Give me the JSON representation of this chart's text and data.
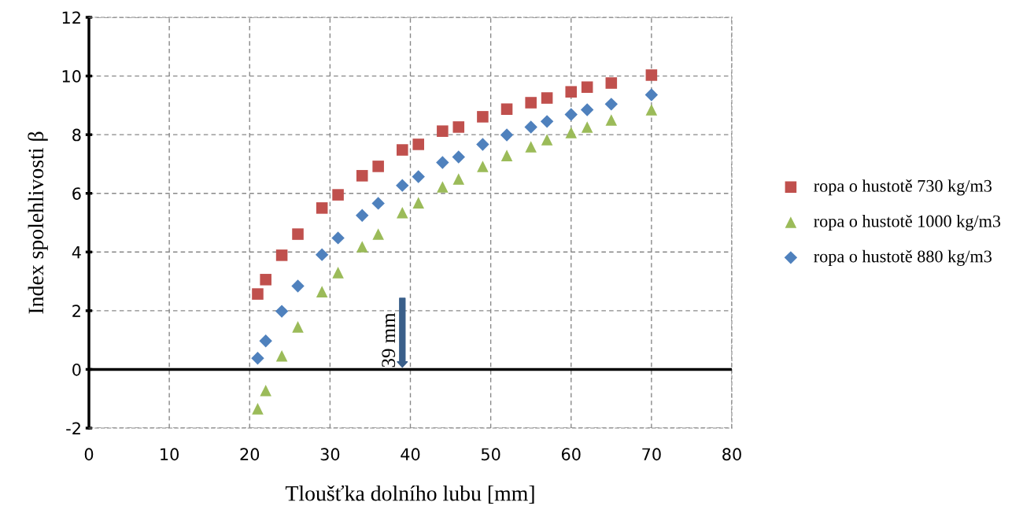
{
  "chart_data": {
    "type": "scatter",
    "xlabel": "Tloušťka dolního lubu [mm]",
    "ylabel": "Index spolehlivosti β",
    "x": [
      21,
      22,
      24,
      26,
      29,
      31,
      34,
      36,
      39,
      41,
      44,
      46,
      49,
      52,
      55,
      57,
      60,
      62,
      65,
      70
    ],
    "series": [
      {
        "name": "ropa o hustotě 730 kg/m3",
        "color": "#c0504d",
        "marker": "square",
        "values": [
          2.57,
          3.06,
          3.89,
          4.61,
          5.5,
          5.95,
          6.6,
          6.92,
          7.48,
          7.67,
          8.12,
          8.26,
          8.61,
          8.87,
          9.09,
          9.25,
          9.46,
          9.62,
          9.76,
          10.03
        ]
      },
      {
        "name": "ropa o hustotě 1000 kg/m3",
        "color": "#9bbb59",
        "marker": "triangle",
        "values": [
          -1.34,
          -0.72,
          0.46,
          1.45,
          2.65,
          3.3,
          4.18,
          4.61,
          5.34,
          5.68,
          6.22,
          6.49,
          6.92,
          7.29,
          7.59,
          7.83,
          8.07,
          8.26,
          8.5,
          8.85
        ]
      },
      {
        "name": "ropa o hustotě 880 kg/m3",
        "color": "#4f81bd",
        "marker": "diamond",
        "values": [
          0.38,
          0.97,
          1.98,
          2.84,
          3.91,
          4.48,
          5.25,
          5.66,
          6.27,
          6.57,
          7.05,
          7.24,
          7.67,
          7.99,
          8.26,
          8.45,
          8.69,
          8.85,
          9.04,
          9.36
        ]
      }
    ],
    "xlim": [
      0,
      80
    ],
    "xticks": [
      0,
      10,
      20,
      30,
      40,
      50,
      60,
      70,
      80
    ],
    "ylim": [
      -2,
      12
    ],
    "yticks": [
      -2,
      0,
      2,
      4,
      6,
      8,
      10,
      12
    ],
    "ref_lines": [
      {
        "axis": "y",
        "value": 0,
        "color": "#000000",
        "line_style": "solid"
      }
    ],
    "annotations": [
      {
        "text": "39 mm",
        "x": 39,
        "y": 0
      }
    ],
    "grid": true,
    "legend": "right"
  }
}
